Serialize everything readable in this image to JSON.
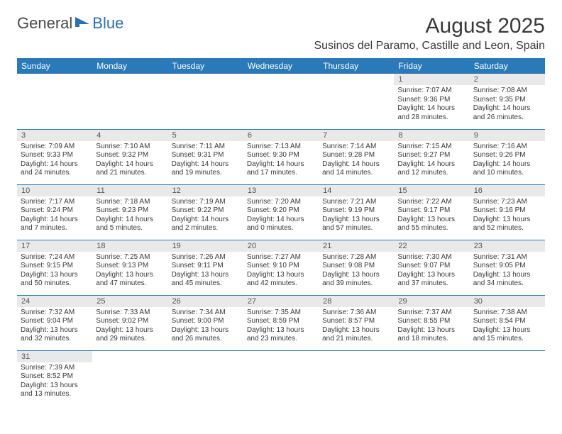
{
  "brand": {
    "part1": "General",
    "part2": "Blue"
  },
  "title": {
    "month": "August 2025",
    "location": "Susinos del Paramo, Castille and Leon, Spain"
  },
  "colors": {
    "header_bg": "#2a7ab9",
    "header_fg": "#ffffff",
    "daynum_bg": "#e9e9e9",
    "rule": "#2a7ab9"
  },
  "weekdays": [
    "Sunday",
    "Monday",
    "Tuesday",
    "Wednesday",
    "Thursday",
    "Friday",
    "Saturday"
  ],
  "cells": [
    [
      null,
      null,
      null,
      null,
      null,
      {
        "n": "1",
        "sr": "Sunrise: 7:07 AM",
        "ss": "Sunset: 9:36 PM",
        "dl": "Daylight: 14 hours and 28 minutes."
      },
      {
        "n": "2",
        "sr": "Sunrise: 7:08 AM",
        "ss": "Sunset: 9:35 PM",
        "dl": "Daylight: 14 hours and 26 minutes."
      }
    ],
    [
      {
        "n": "3",
        "sr": "Sunrise: 7:09 AM",
        "ss": "Sunset: 9:33 PM",
        "dl": "Daylight: 14 hours and 24 minutes."
      },
      {
        "n": "4",
        "sr": "Sunrise: 7:10 AM",
        "ss": "Sunset: 9:32 PM",
        "dl": "Daylight: 14 hours and 21 minutes."
      },
      {
        "n": "5",
        "sr": "Sunrise: 7:11 AM",
        "ss": "Sunset: 9:31 PM",
        "dl": "Daylight: 14 hours and 19 minutes."
      },
      {
        "n": "6",
        "sr": "Sunrise: 7:13 AM",
        "ss": "Sunset: 9:30 PM",
        "dl": "Daylight: 14 hours and 17 minutes."
      },
      {
        "n": "7",
        "sr": "Sunrise: 7:14 AM",
        "ss": "Sunset: 9:28 PM",
        "dl": "Daylight: 14 hours and 14 minutes."
      },
      {
        "n": "8",
        "sr": "Sunrise: 7:15 AM",
        "ss": "Sunset: 9:27 PM",
        "dl": "Daylight: 14 hours and 12 minutes."
      },
      {
        "n": "9",
        "sr": "Sunrise: 7:16 AM",
        "ss": "Sunset: 9:26 PM",
        "dl": "Daylight: 14 hours and 10 minutes."
      }
    ],
    [
      {
        "n": "10",
        "sr": "Sunrise: 7:17 AM",
        "ss": "Sunset: 9:24 PM",
        "dl": "Daylight: 14 hours and 7 minutes."
      },
      {
        "n": "11",
        "sr": "Sunrise: 7:18 AM",
        "ss": "Sunset: 9:23 PM",
        "dl": "Daylight: 14 hours and 5 minutes."
      },
      {
        "n": "12",
        "sr": "Sunrise: 7:19 AM",
        "ss": "Sunset: 9:22 PM",
        "dl": "Daylight: 14 hours and 2 minutes."
      },
      {
        "n": "13",
        "sr": "Sunrise: 7:20 AM",
        "ss": "Sunset: 9:20 PM",
        "dl": "Daylight: 14 hours and 0 minutes."
      },
      {
        "n": "14",
        "sr": "Sunrise: 7:21 AM",
        "ss": "Sunset: 9:19 PM",
        "dl": "Daylight: 13 hours and 57 minutes."
      },
      {
        "n": "15",
        "sr": "Sunrise: 7:22 AM",
        "ss": "Sunset: 9:17 PM",
        "dl": "Daylight: 13 hours and 55 minutes."
      },
      {
        "n": "16",
        "sr": "Sunrise: 7:23 AM",
        "ss": "Sunset: 9:16 PM",
        "dl": "Daylight: 13 hours and 52 minutes."
      }
    ],
    [
      {
        "n": "17",
        "sr": "Sunrise: 7:24 AM",
        "ss": "Sunset: 9:15 PM",
        "dl": "Daylight: 13 hours and 50 minutes."
      },
      {
        "n": "18",
        "sr": "Sunrise: 7:25 AM",
        "ss": "Sunset: 9:13 PM",
        "dl": "Daylight: 13 hours and 47 minutes."
      },
      {
        "n": "19",
        "sr": "Sunrise: 7:26 AM",
        "ss": "Sunset: 9:11 PM",
        "dl": "Daylight: 13 hours and 45 minutes."
      },
      {
        "n": "20",
        "sr": "Sunrise: 7:27 AM",
        "ss": "Sunset: 9:10 PM",
        "dl": "Daylight: 13 hours and 42 minutes."
      },
      {
        "n": "21",
        "sr": "Sunrise: 7:28 AM",
        "ss": "Sunset: 9:08 PM",
        "dl": "Daylight: 13 hours and 39 minutes."
      },
      {
        "n": "22",
        "sr": "Sunrise: 7:30 AM",
        "ss": "Sunset: 9:07 PM",
        "dl": "Daylight: 13 hours and 37 minutes."
      },
      {
        "n": "23",
        "sr": "Sunrise: 7:31 AM",
        "ss": "Sunset: 9:05 PM",
        "dl": "Daylight: 13 hours and 34 minutes."
      }
    ],
    [
      {
        "n": "24",
        "sr": "Sunrise: 7:32 AM",
        "ss": "Sunset: 9:04 PM",
        "dl": "Daylight: 13 hours and 32 minutes."
      },
      {
        "n": "25",
        "sr": "Sunrise: 7:33 AM",
        "ss": "Sunset: 9:02 PM",
        "dl": "Daylight: 13 hours and 29 minutes."
      },
      {
        "n": "26",
        "sr": "Sunrise: 7:34 AM",
        "ss": "Sunset: 9:00 PM",
        "dl": "Daylight: 13 hours and 26 minutes."
      },
      {
        "n": "27",
        "sr": "Sunrise: 7:35 AM",
        "ss": "Sunset: 8:59 PM",
        "dl": "Daylight: 13 hours and 23 minutes."
      },
      {
        "n": "28",
        "sr": "Sunrise: 7:36 AM",
        "ss": "Sunset: 8:57 PM",
        "dl": "Daylight: 13 hours and 21 minutes."
      },
      {
        "n": "29",
        "sr": "Sunrise: 7:37 AM",
        "ss": "Sunset: 8:55 PM",
        "dl": "Daylight: 13 hours and 18 minutes."
      },
      {
        "n": "30",
        "sr": "Sunrise: 7:38 AM",
        "ss": "Sunset: 8:54 PM",
        "dl": "Daylight: 13 hours and 15 minutes."
      }
    ],
    [
      {
        "n": "31",
        "sr": "Sunrise: 7:39 AM",
        "ss": "Sunset: 8:52 PM",
        "dl": "Daylight: 13 hours and 13 minutes."
      },
      null,
      null,
      null,
      null,
      null,
      null
    ]
  ]
}
